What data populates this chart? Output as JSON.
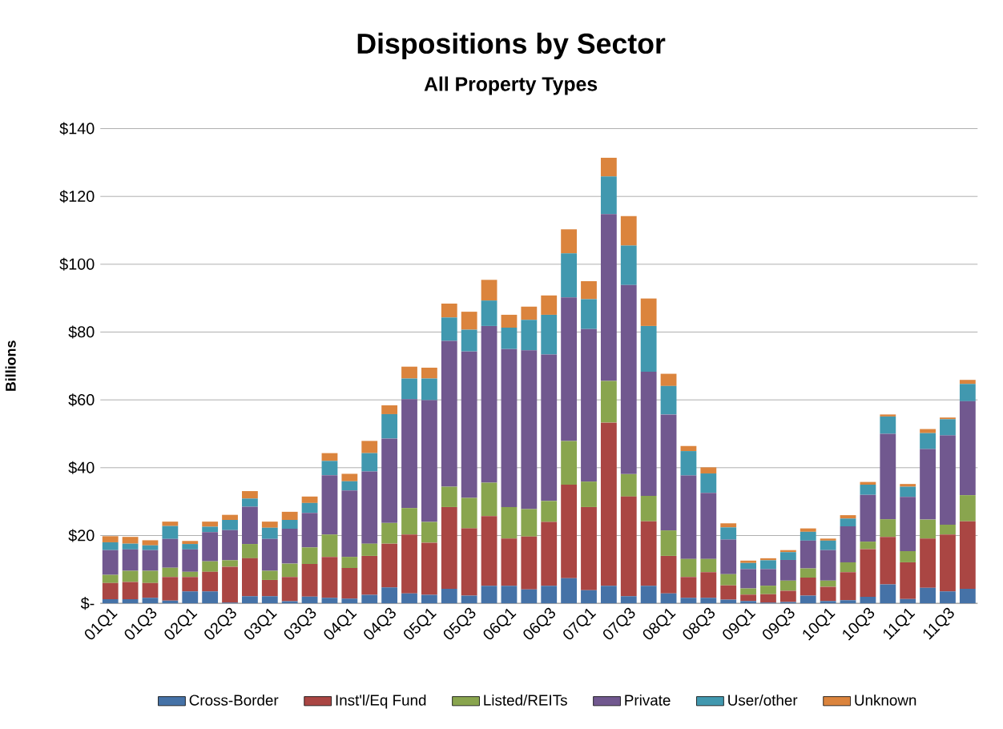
{
  "chart_data": {
    "type": "bar",
    "stacked": true,
    "title": "Dispositions by Sector",
    "subtitle": "All Property Types",
    "ylabel": "Billions",
    "categories": [
      "01Q1",
      null,
      "01Q3",
      null,
      "02Q1",
      null,
      "02Q3",
      null,
      "03Q1",
      null,
      "03Q3",
      null,
      "04Q1",
      null,
      "04Q3",
      null,
      "05Q1",
      null,
      "05Q3",
      null,
      "06Q1",
      null,
      "06Q3",
      null,
      "07Q1",
      null,
      "07Q3",
      null,
      "08Q1",
      null,
      "08Q3",
      null,
      "09Q1",
      null,
      "09Q3",
      null,
      "10Q1",
      null,
      "10Q3",
      null,
      "11Q1",
      null,
      "11Q3",
      null
    ],
    "ylim": [
      0,
      140
    ],
    "yticks": [
      {
        "value": 0,
        "label": "$-"
      },
      {
        "value": 20,
        "label": "$20"
      },
      {
        "value": 40,
        "label": "$40"
      },
      {
        "value": 60,
        "label": "$60"
      },
      {
        "value": 80,
        "label": "$80"
      },
      {
        "value": 100,
        "label": "$100"
      },
      {
        "value": 120,
        "label": "$120"
      },
      {
        "value": 140,
        "label": "$140"
      }
    ],
    "grid": "y",
    "legend": "bottom",
    "series": [
      {
        "name": "Cross-Border",
        "color": "#4572a7",
        "values": [
          1.2,
          1.2,
          1.6,
          0.8,
          3.5,
          3.5,
          0.2,
          2.1,
          2.1,
          0.6,
          2.0,
          1.6,
          1.4,
          2.5,
          4.7,
          2.9,
          2.5,
          4.3,
          2.3,
          5.2,
          5.2,
          4.1,
          5.2,
          7.4,
          3.9,
          5.2,
          2.1,
          5.2,
          2.9,
          1.6,
          1.6,
          1.1,
          0.7,
          0.2,
          0.4,
          2.3,
          0.7,
          0.9,
          1.9,
          5.6,
          1.3,
          4.6,
          3.5,
          4.3
        ]
      },
      {
        "name": "Inst'l/Eq Fund",
        "color": "#aa4643",
        "values": [
          4.8,
          5.1,
          4.4,
          7.0,
          4.3,
          5.8,
          10.6,
          11.2,
          4.8,
          7.2,
          9.6,
          12.1,
          9.0,
          11.5,
          12.9,
          17.4,
          15.4,
          24.1,
          19.8,
          20.5,
          13.9,
          15.6,
          18.8,
          27.6,
          24.5,
          48.1,
          29.4,
          19.0,
          11.1,
          6.2,
          7.6,
          4.2,
          1.9,
          2.5,
          3.3,
          5.3,
          4.2,
          8.3,
          14.1,
          14.0,
          10.8,
          14.5,
          16.8,
          19.9
        ]
      },
      {
        "name": "Listed/REITs",
        "color": "#89a54e",
        "values": [
          2.4,
          3.3,
          3.6,
          2.7,
          1.5,
          3.1,
          1.9,
          4.2,
          2.7,
          3.9,
          4.9,
          6.6,
          3.3,
          3.6,
          6.1,
          7.8,
          6.1,
          6.0,
          9.0,
          9.9,
          9.3,
          8.1,
          6.2,
          12.9,
          7.5,
          12.3,
          6.6,
          7.5,
          7.5,
          5.3,
          3.9,
          3.3,
          1.8,
          2.5,
          3.0,
          2.7,
          1.8,
          2.9,
          2.2,
          5.2,
          3.3,
          5.6,
          2.9,
          7.7
        ]
      },
      {
        "name": "Private",
        "color": "#71588f",
        "values": [
          7.3,
          6.3,
          6.1,
          8.5,
          6.6,
          8.6,
          8.9,
          11.0,
          9.4,
          10.3,
          10.2,
          17.5,
          19.6,
          21.3,
          24.9,
          32.1,
          35.9,
          43.0,
          43.2,
          46.2,
          46.6,
          46.8,
          43.2,
          42.3,
          45.0,
          49.2,
          55.8,
          36.6,
          34.2,
          24.6,
          19.5,
          10.2,
          5.7,
          4.9,
          6.1,
          8.2,
          9.0,
          10.6,
          13.8,
          25.2,
          16.0,
          20.8,
          26.3,
          27.7
        ]
      },
      {
        "name": "User/other",
        "color": "#4198af",
        "values": [
          2.3,
          1.7,
          1.4,
          3.8,
          1.6,
          1.6,
          3.0,
          2.4,
          3.3,
          2.6,
          2.9,
          4.2,
          2.7,
          5.4,
          7.2,
          6.1,
          6.4,
          6.9,
          6.4,
          7.5,
          6.3,
          9.0,
          11.7,
          13.0,
          8.8,
          11.1,
          11.6,
          13.5,
          8.4,
          7.2,
          5.7,
          3.6,
          1.8,
          2.6,
          2.3,
          2.6,
          2.8,
          2.3,
          3.0,
          5.1,
          3.0,
          4.7,
          4.8,
          5.1
        ]
      },
      {
        "name": "Unknown",
        "color": "#db843d",
        "values": [
          1.8,
          2.0,
          1.5,
          1.3,
          0.9,
          1.5,
          1.5,
          2.2,
          1.8,
          2.4,
          1.9,
          2.3,
          2.2,
          3.6,
          2.6,
          3.5,
          3.2,
          4.1,
          5.3,
          6.1,
          3.8,
          3.9,
          5.7,
          7.1,
          5.3,
          5.5,
          8.7,
          8.1,
          3.6,
          1.5,
          1.8,
          1.2,
          0.7,
          0.6,
          0.6,
          1.0,
          0.6,
          1.0,
          0.8,
          0.6,
          0.8,
          1.2,
          0.5,
          1.2
        ]
      }
    ]
  }
}
